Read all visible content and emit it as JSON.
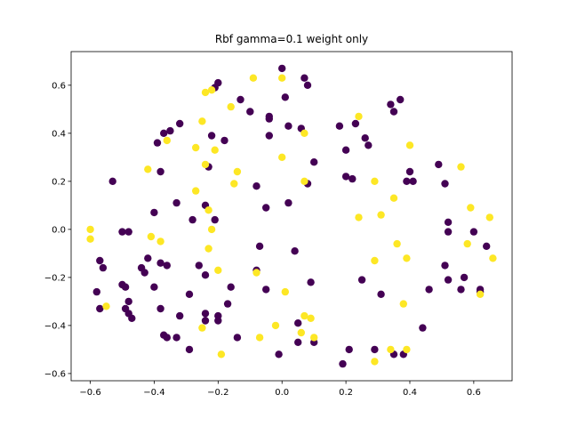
{
  "chart_data": {
    "type": "scatter",
    "title": "Rbf gamma=0.1 weight only",
    "xlabel": "",
    "ylabel": "",
    "xlim": [
      -0.66,
      0.72
    ],
    "ylim": [
      -0.63,
      0.74
    ],
    "xticks": [
      -0.6,
      -0.4,
      -0.2,
      0.0,
      0.2,
      0.4,
      0.6
    ],
    "xtick_labels": [
      "−0.6",
      "−0.4",
      "−0.2",
      "0.0",
      "0.2",
      "0.4",
      "0.6"
    ],
    "yticks": [
      -0.6,
      -0.4,
      -0.2,
      0.0,
      0.2,
      0.4,
      0.6
    ],
    "ytick_labels": [
      "−0.6",
      "−0.4",
      "−0.2",
      "0.0",
      "0.2",
      "0.4",
      "0.6"
    ],
    "grid": false,
    "legend": "none",
    "colors": {
      "class_0": "#440154",
      "class_1": "#fde725"
    },
    "series": [
      {
        "class": 0,
        "points": [
          [
            0.0,
            0.67
          ],
          [
            0.07,
            0.63
          ],
          [
            0.08,
            0.6
          ],
          [
            -0.2,
            0.61
          ],
          [
            -0.21,
            0.59
          ],
          [
            0.01,
            0.55
          ],
          [
            -0.13,
            0.54
          ],
          [
            -0.1,
            0.49
          ],
          [
            -0.04,
            0.47
          ],
          [
            -0.04,
            0.46
          ],
          [
            0.37,
            0.54
          ],
          [
            0.34,
            0.52
          ],
          [
            0.35,
            0.49
          ],
          [
            0.02,
            0.43
          ],
          [
            -0.37,
            0.4
          ],
          [
            -0.35,
            0.41
          ],
          [
            -0.39,
            0.36
          ],
          [
            -0.32,
            0.44
          ],
          [
            -0.22,
            0.39
          ],
          [
            -0.18,
            0.37
          ],
          [
            -0.04,
            0.39
          ],
          [
            0.06,
            0.42
          ],
          [
            0.18,
            0.43
          ],
          [
            0.23,
            0.44
          ],
          [
            0.26,
            0.38
          ],
          [
            0.27,
            0.35
          ],
          [
            0.2,
            0.33
          ],
          [
            -0.38,
            0.24
          ],
          [
            -0.23,
            0.26
          ],
          [
            -0.53,
            0.2
          ],
          [
            -0.33,
            0.11
          ],
          [
            -0.24,
            0.1
          ],
          [
            -0.08,
            0.18
          ],
          [
            -0.05,
            0.09
          ],
          [
            0.02,
            0.11
          ],
          [
            0.1,
            0.28
          ],
          [
            0.08,
            0.19
          ],
          [
            0.2,
            0.22
          ],
          [
            0.22,
            0.21
          ],
          [
            0.4,
            0.24
          ],
          [
            0.39,
            0.2
          ],
          [
            0.41,
            0.2
          ],
          [
            0.49,
            0.27
          ],
          [
            0.51,
            0.19
          ],
          [
            -0.4,
            0.07
          ],
          [
            -0.28,
            0.04
          ],
          [
            -0.21,
            0.04
          ],
          [
            -0.5,
            -0.01
          ],
          [
            -0.48,
            -0.01
          ],
          [
            -0.57,
            -0.13
          ],
          [
            -0.56,
            -0.16
          ],
          [
            -0.44,
            -0.16
          ],
          [
            -0.42,
            -0.12
          ],
          [
            -0.43,
            -0.18
          ],
          [
            -0.38,
            -0.14
          ],
          [
            -0.36,
            -0.15
          ],
          [
            -0.4,
            -0.24
          ],
          [
            -0.26,
            -0.15
          ],
          [
            -0.24,
            -0.19
          ],
          [
            -0.07,
            -0.07
          ],
          [
            -0.08,
            -0.17
          ],
          [
            -0.05,
            -0.25
          ],
          [
            0.04,
            -0.09
          ],
          [
            0.09,
            -0.22
          ],
          [
            0.52,
            0.03
          ],
          [
            0.52,
            -0.01
          ],
          [
            0.6,
            -0.01
          ],
          [
            0.64,
            -0.07
          ],
          [
            0.51,
            -0.15
          ],
          [
            0.57,
            -0.2
          ],
          [
            0.56,
            -0.25
          ],
          [
            0.52,
            -0.21
          ],
          [
            0.46,
            -0.25
          ],
          [
            0.62,
            -0.25
          ],
          [
            0.62,
            -0.26
          ],
          [
            0.25,
            -0.21
          ],
          [
            0.31,
            -0.27
          ],
          [
            -0.58,
            -0.26
          ],
          [
            -0.57,
            -0.33
          ],
          [
            -0.5,
            -0.23
          ],
          [
            -0.49,
            -0.24
          ],
          [
            -0.48,
            -0.3
          ],
          [
            -0.49,
            -0.33
          ],
          [
            -0.48,
            -0.35
          ],
          [
            -0.47,
            -0.37
          ],
          [
            -0.38,
            -0.33
          ],
          [
            -0.37,
            -0.44
          ],
          [
            -0.36,
            -0.45
          ],
          [
            -0.33,
            -0.45
          ],
          [
            -0.32,
            -0.36
          ],
          [
            -0.29,
            -0.27
          ],
          [
            -0.29,
            -0.5
          ],
          [
            -0.24,
            -0.35
          ],
          [
            -0.24,
            -0.38
          ],
          [
            -0.2,
            -0.36
          ],
          [
            -0.2,
            -0.38
          ],
          [
            -0.17,
            -0.31
          ],
          [
            -0.16,
            -0.24
          ],
          [
            -0.14,
            -0.45
          ],
          [
            0.05,
            -0.39
          ],
          [
            0.05,
            -0.47
          ],
          [
            0.1,
            -0.47
          ],
          [
            -0.01,
            -0.52
          ],
          [
            0.21,
            -0.5
          ],
          [
            0.19,
            -0.56
          ],
          [
            0.29,
            -0.5
          ],
          [
            0.35,
            -0.52
          ],
          [
            0.38,
            -0.52
          ],
          [
            0.44,
            -0.41
          ]
        ]
      },
      {
        "class": 1,
        "points": [
          [
            -0.09,
            0.63
          ],
          [
            0.0,
            0.63
          ],
          [
            -0.24,
            0.57
          ],
          [
            -0.22,
            0.58
          ],
          [
            -0.16,
            0.51
          ],
          [
            0.24,
            0.47
          ],
          [
            -0.25,
            0.45
          ],
          [
            -0.36,
            0.37
          ],
          [
            -0.27,
            0.34
          ],
          [
            -0.21,
            0.33
          ],
          [
            0.07,
            0.4
          ],
          [
            0.4,
            0.35
          ],
          [
            -0.42,
            0.25
          ],
          [
            -0.24,
            0.27
          ],
          [
            -0.14,
            0.24
          ],
          [
            -0.15,
            0.19
          ],
          [
            0.0,
            0.3
          ],
          [
            0.07,
            0.2
          ],
          [
            0.29,
            0.2
          ],
          [
            0.56,
            0.26
          ],
          [
            -0.27,
            0.16
          ],
          [
            -0.23,
            0.08
          ],
          [
            0.35,
            0.13
          ],
          [
            0.24,
            0.05
          ],
          [
            0.31,
            0.06
          ],
          [
            0.59,
            0.09
          ],
          [
            0.65,
            0.05
          ],
          [
            -0.6,
            0.0
          ],
          [
            -0.6,
            -0.04
          ],
          [
            -0.41,
            -0.03
          ],
          [
            -0.38,
            -0.05
          ],
          [
            -0.22,
            0.0
          ],
          [
            -0.23,
            -0.08
          ],
          [
            0.36,
            -0.06
          ],
          [
            0.58,
            -0.06
          ],
          [
            -0.2,
            -0.17
          ],
          [
            -0.08,
            -0.18
          ],
          [
            0.29,
            -0.13
          ],
          [
            0.39,
            -0.12
          ],
          [
            0.66,
            -0.12
          ],
          [
            0.01,
            -0.26
          ],
          [
            0.62,
            -0.27
          ],
          [
            -0.55,
            -0.32
          ],
          [
            -0.25,
            -0.41
          ],
          [
            0.07,
            -0.36
          ],
          [
            0.09,
            -0.37
          ],
          [
            -0.02,
            -0.4
          ],
          [
            -0.07,
            -0.45
          ],
          [
            0.06,
            -0.43
          ],
          [
            0.1,
            -0.45
          ],
          [
            0.38,
            -0.31
          ],
          [
            -0.19,
            -0.52
          ],
          [
            0.29,
            -0.55
          ],
          [
            0.34,
            -0.5
          ],
          [
            0.39,
            -0.5
          ]
        ]
      }
    ]
  }
}
